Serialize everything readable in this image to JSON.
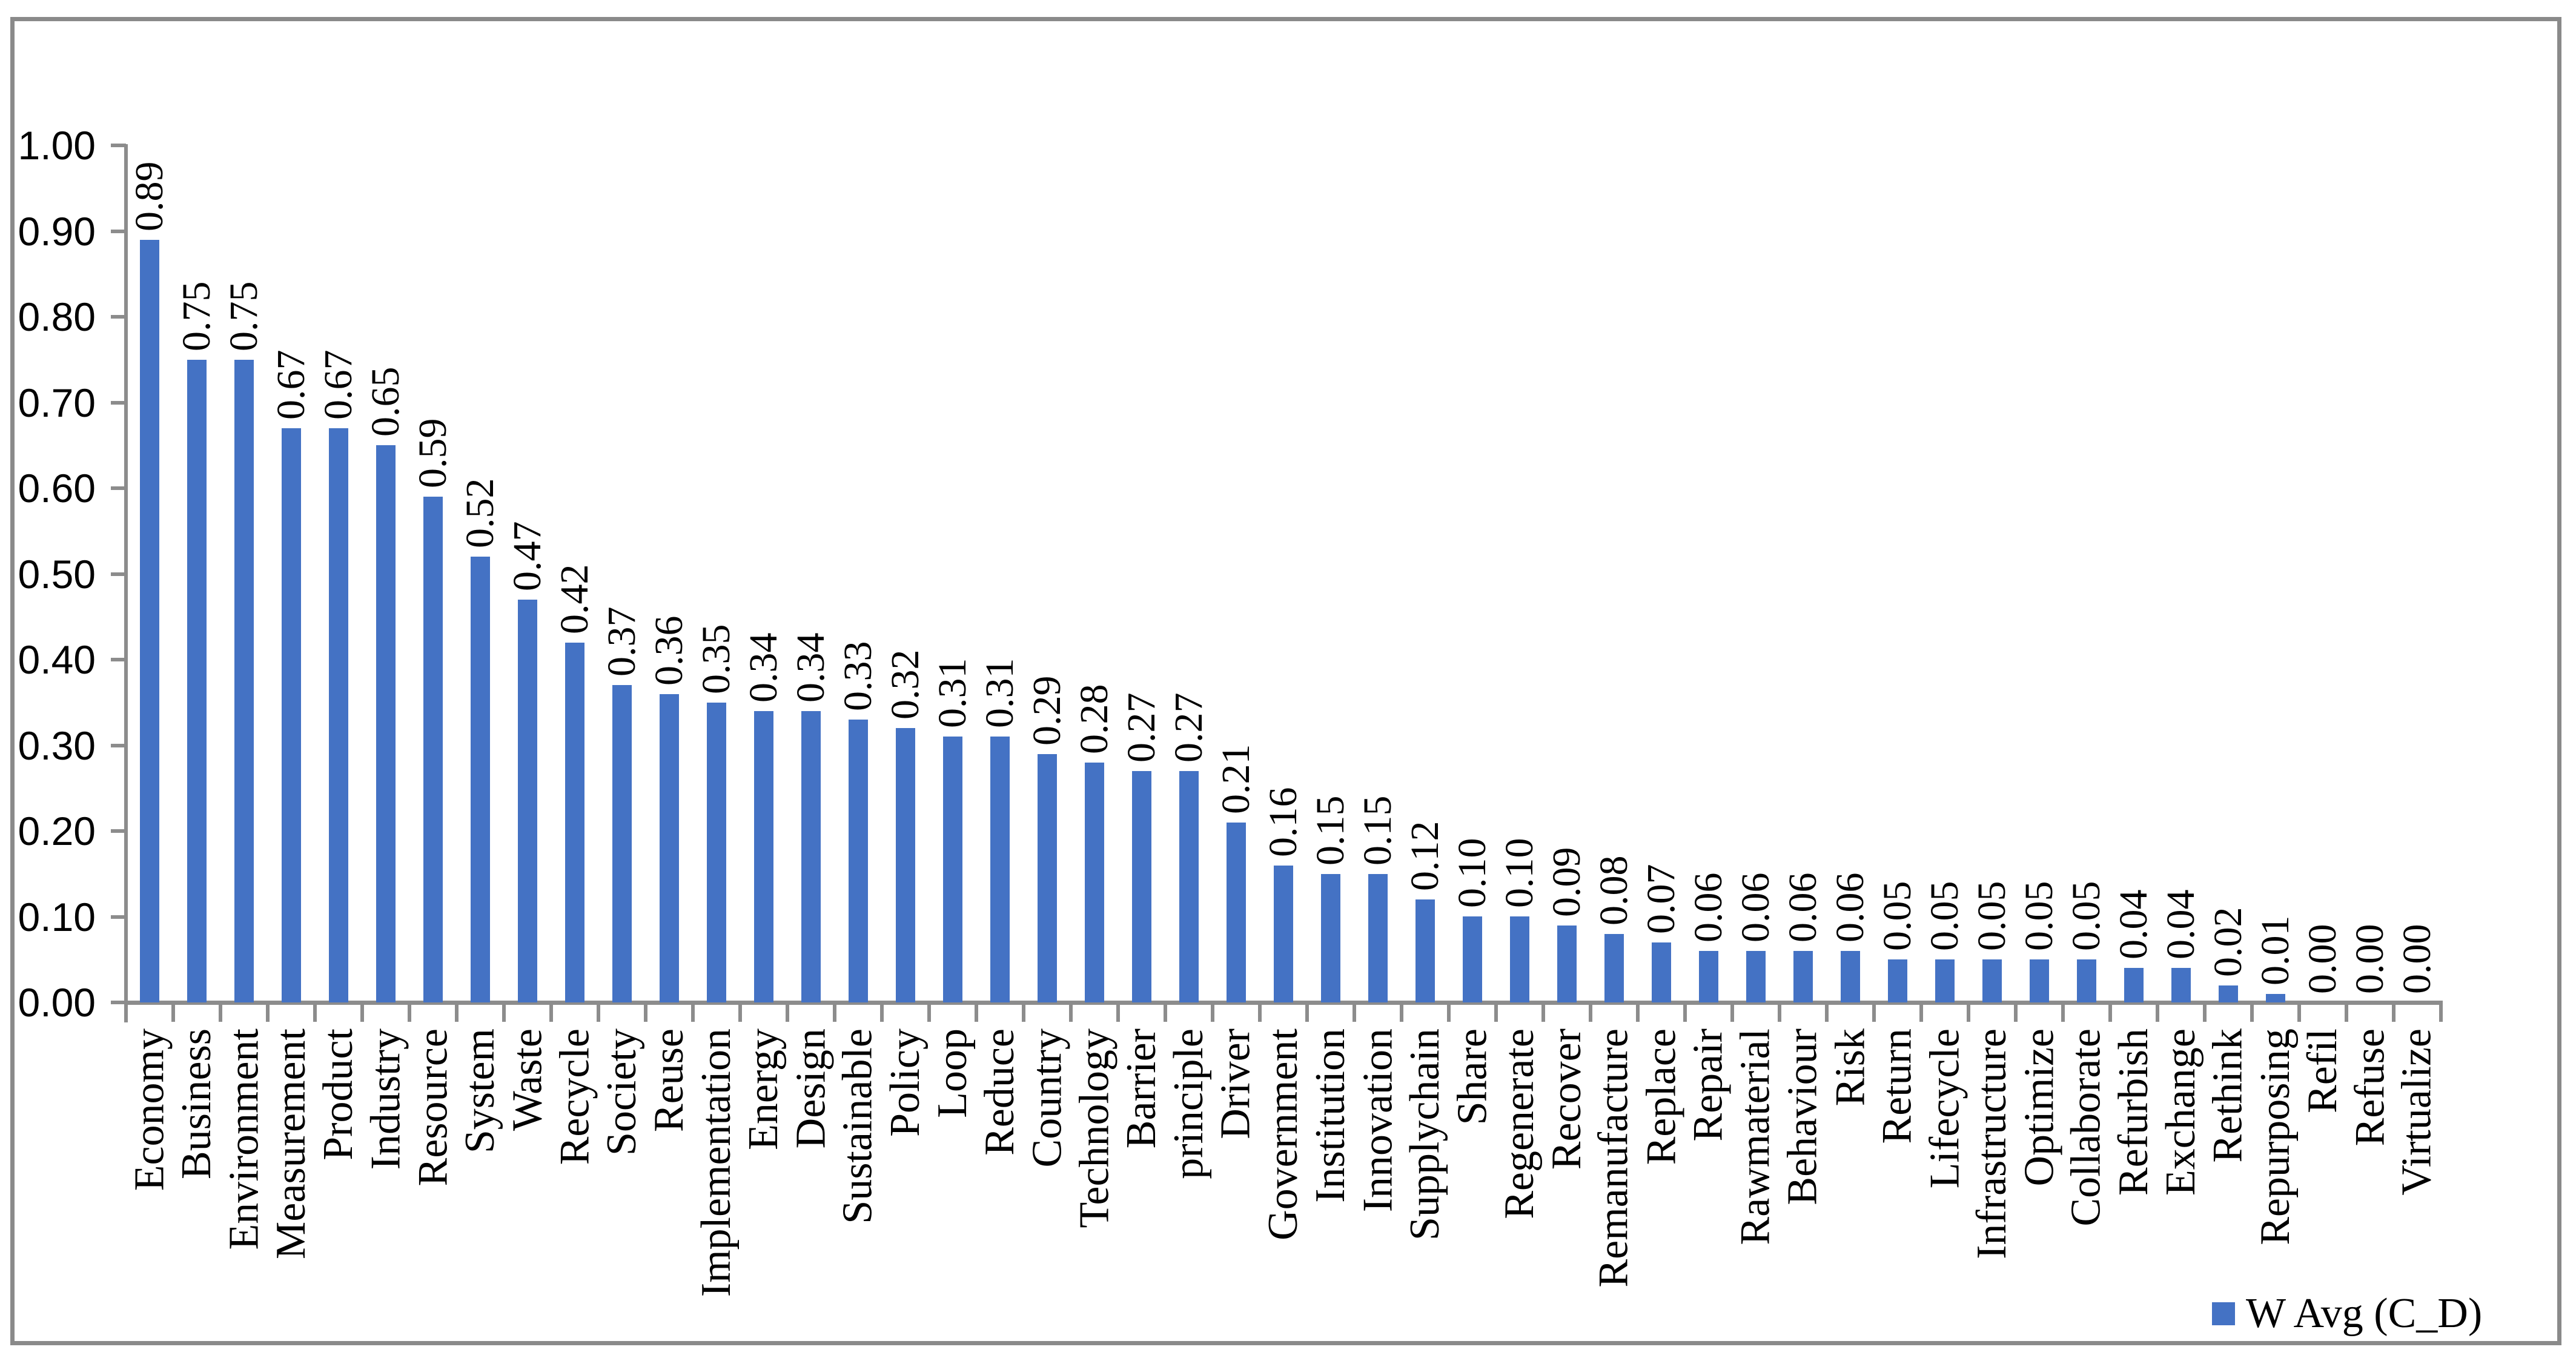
{
  "chart_data": {
    "type": "bar",
    "title": "",
    "series_label": "W Avg (C_D)",
    "legend_position": "bottom-right",
    "grid": false,
    "ylim": [
      0,
      1.0
    ],
    "y_tick_labels": [
      "0.00",
      "0.10",
      "0.20",
      "0.30",
      "0.40",
      "0.50",
      "0.60",
      "0.70",
      "0.80",
      "0.90",
      "1.00"
    ],
    "categories": [
      "Economy",
      "Business",
      "Environment",
      "Measurement",
      "Product",
      "Industry",
      "Resource",
      "System",
      "Waste",
      "Recycle",
      "Society",
      "Reuse",
      "Implementation",
      "Energy",
      "Design",
      "Sustainable",
      "Policy",
      "Loop",
      "Reduce",
      "Country",
      "Technology",
      "Barrier",
      "principle",
      "Driver",
      "Government",
      "Institution",
      "Innovation",
      "Supplychain",
      "Share",
      "Regenerate",
      "Recover",
      "Remanufacture",
      "Replace",
      "Repair",
      "Rawmaterial",
      "Behaviour",
      "Risk",
      "Return",
      "Lifecycle",
      "Infrastructure",
      "Optimize",
      "Collaborate",
      "Refurbish",
      "Exchange",
      "Rethink",
      "Repurposing",
      "Refil",
      "Refuse",
      "Virtualize"
    ],
    "values": [
      0.89,
      0.75,
      0.75,
      0.67,
      0.67,
      0.65,
      0.59,
      0.52,
      0.47,
      0.42,
      0.37,
      0.36,
      0.35,
      0.34,
      0.34,
      0.33,
      0.32,
      0.31,
      0.31,
      0.29,
      0.28,
      0.27,
      0.27,
      0.21,
      0.16,
      0.15,
      0.15,
      0.12,
      0.1,
      0.1,
      0.09,
      0.08,
      0.07,
      0.06,
      0.06,
      0.06,
      0.06,
      0.05,
      0.05,
      0.05,
      0.05,
      0.05,
      0.04,
      0.04,
      0.02,
      0.01,
      0.0,
      0.0,
      0.0
    ],
    "bar_color": "#4472C4",
    "axis_color": "#8C8C8C",
    "border_color": "#8A8A8A",
    "text_color": "#000000"
  }
}
